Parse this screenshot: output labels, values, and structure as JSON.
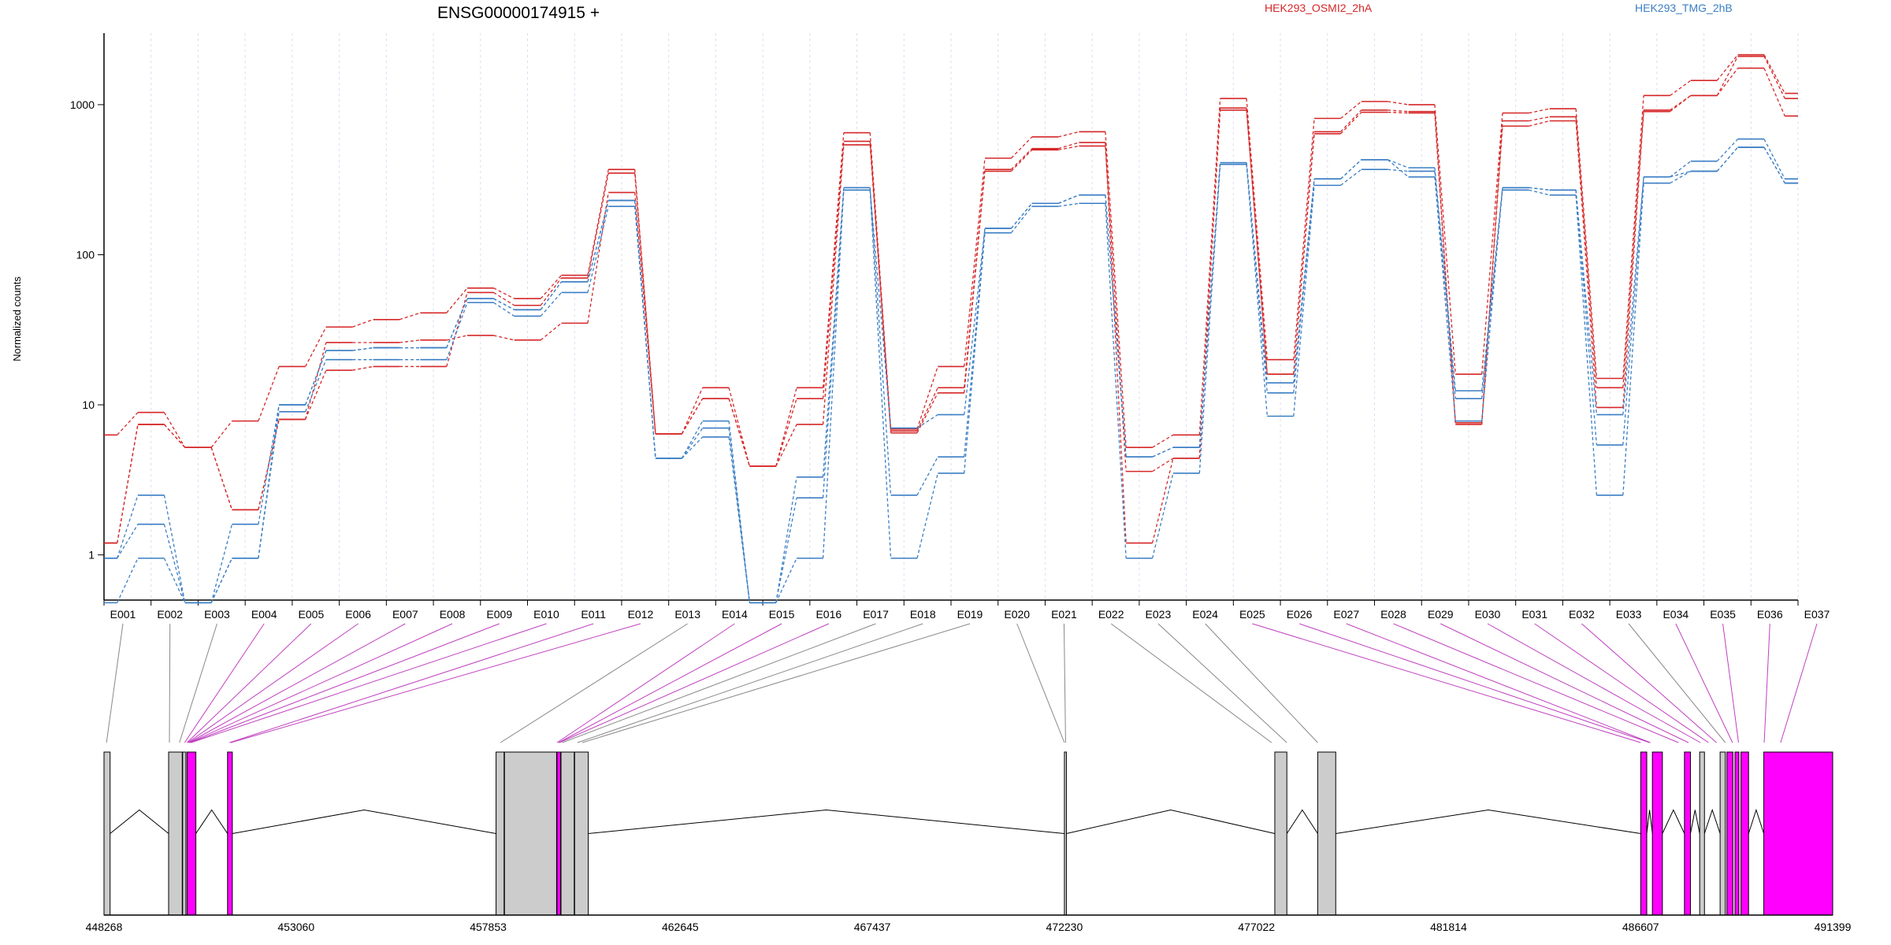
{
  "chart_data": {
    "type": "line",
    "title": "ENSG00000174915 +",
    "ylabel": "Normalized counts",
    "yscale": "log",
    "ylim": [
      0.5,
      3000
    ],
    "yticks": [
      1,
      10,
      100,
      1000
    ],
    "ytick_labels": [
      "1",
      "10",
      "100",
      "1000"
    ],
    "grid": "vertical dashed per exon",
    "legend_position": "top",
    "categories": [
      "E001",
      "E002",
      "E003",
      "E004",
      "E005",
      "E006",
      "E007",
      "E008",
      "E009",
      "E010",
      "E011",
      "E012",
      "E013",
      "E014",
      "E015",
      "E016",
      "E017",
      "E018",
      "E019",
      "E020",
      "E021",
      "E022",
      "E023",
      "E024",
      "E025",
      "E026",
      "E027",
      "E028",
      "E029",
      "E030",
      "E031",
      "E032",
      "E033",
      "E034",
      "E035",
      "E036",
      "E037"
    ],
    "series": [
      {
        "name": "HEK293_OSMI2_2hA",
        "color": "#d62728",
        "style": "dashed",
        "values": [
          6.3,
          8.9,
          5.2,
          7.8,
          18,
          33,
          37,
          41,
          60,
          51,
          73,
          370,
          6.4,
          13,
          3.9,
          13,
          650,
          6.9,
          18,
          440,
          610,
          660,
          5.2,
          6.3,
          1100,
          20,
          810,
          1050,
          1000,
          16,
          880,
          940,
          15,
          1150,
          1450,
          2150,
          1190
        ]
      },
      {
        "name": "HEK293_OSMI2_2hA",
        "color": "#d62728",
        "style": "dashed",
        "values": [
          1.2,
          7.4,
          5.2,
          2,
          8,
          26,
          26,
          27,
          29,
          27,
          35,
          260,
          6.4,
          11,
          3.9,
          11,
          570,
          6.7,
          13,
          370,
          510,
          560,
          1.2,
          4.4,
          950,
          16,
          660,
          920,
          900,
          7.4,
          780,
          830,
          13,
          920,
          1150,
          1750,
          840
        ]
      },
      {
        "name": "HEK293_OSMI2_2hA",
        "color": "#d62728",
        "style": "dashed",
        "values": [
          1.2,
          7.4,
          5.2,
          2,
          8,
          17,
          18,
          18,
          56,
          46,
          70,
          350,
          6.4,
          11,
          3.9,
          7.4,
          540,
          6.5,
          12,
          360,
          500,
          530,
          3.6,
          4.4,
          920,
          16,
          640,
          890,
          880,
          7.6,
          720,
          780,
          9.6,
          900,
          1150,
          2100,
          1100
        ]
      },
      {
        "name": "HEK293_TMG_2hB",
        "color": "#3a7ec4",
        "style": "dashed",
        "values": [
          0.95,
          2.5,
          0.48,
          1.6,
          10,
          23,
          24,
          24,
          51,
          43,
          66,
          230,
          4.4,
          7.8,
          0.48,
          3.3,
          280,
          2.5,
          4.5,
          150,
          220,
          250,
          4.5,
          5.2,
          410,
          14,
          320,
          430,
          380,
          12.4,
          280,
          270,
          8.6,
          330,
          420,
          590,
          320
        ]
      },
      {
        "name": "HEK293_TMG_2hB",
        "color": "#3a7ec4",
        "style": "dashed",
        "values": [
          0.95,
          1.6,
          0.48,
          0.95,
          9,
          20,
          20,
          20,
          48,
          39,
          56,
          210,
          4.4,
          6.1,
          0.48,
          2.4,
          270,
          0.95,
          3.5,
          140,
          210,
          220,
          0.95,
          3.5,
          400,
          8.4,
          290,
          370,
          360,
          11,
          270,
          250,
          2.5,
          300,
          360,
          520,
          300
        ]
      },
      {
        "name": "HEK293_TMG_2hB",
        "color": "#3a7ec4",
        "style": "dashed",
        "values": [
          0.48,
          0.95,
          0.48,
          0.95,
          10,
          23,
          24,
          24,
          51,
          43,
          66,
          230,
          4.4,
          7,
          0.48,
          0.95,
          270,
          7,
          8.6,
          150,
          220,
          250,
          4.5,
          5.2,
          410,
          12,
          320,
          430,
          330,
          7.8,
          280,
          270,
          5.4,
          330,
          360,
          520,
          300
        ]
      }
    ],
    "gene_model": {
      "coordinate_ticks": [
        "448268",
        "453060",
        "457853",
        "462645",
        "467437",
        "472230",
        "477022",
        "481814",
        "486607",
        "491399"
      ],
      "coordinate_tick_values": [
        448268,
        453060,
        457853,
        462645,
        467437,
        472230,
        477022,
        481814,
        486607,
        491399
      ],
      "exons_genomic": [
        {
          "start": 448268,
          "end": 448420,
          "highlight": false
        },
        {
          "start": 449880,
          "end": 450220,
          "highlight": false
        },
        {
          "start": 450230,
          "end": 450310,
          "highlight": false
        },
        {
          "start": 450340,
          "end": 450560,
          "highlight": true
        },
        {
          "start": 451350,
          "end": 451470,
          "highlight": true
        },
        {
          "start": 458050,
          "end": 458250,
          "highlight": false
        },
        {
          "start": 458260,
          "end": 459560,
          "highlight": false
        },
        {
          "start": 459570,
          "end": 459660,
          "highlight": true
        },
        {
          "start": 459670,
          "end": 460000,
          "highlight": false
        },
        {
          "start": 460010,
          "end": 460350,
          "highlight": false
        },
        {
          "start": 472230,
          "end": 472280,
          "highlight": false
        },
        {
          "start": 477480,
          "end": 477780,
          "highlight": false
        },
        {
          "start": 478550,
          "end": 479000,
          "highlight": false
        },
        {
          "start": 486610,
          "end": 486760,
          "highlight": true
        },
        {
          "start": 486900,
          "end": 487150,
          "highlight": true
        },
        {
          "start": 487700,
          "end": 487850,
          "highlight": true
        },
        {
          "start": 488080,
          "end": 488200,
          "highlight": false
        },
        {
          "start": 488590,
          "end": 488720,
          "highlight": false
        },
        {
          "start": 488760,
          "end": 488910,
          "highlight": true
        },
        {
          "start": 488960,
          "end": 489060,
          "highlight": true
        },
        {
          "start": 489110,
          "end": 489300,
          "highlight": true
        },
        {
          "start": 489680,
          "end": 491399,
          "highlight": true
        }
      ],
      "exon_bins_genomic": [
        448330,
        449900,
        450150,
        450280,
        450340,
        450360,
        450380,
        450400,
        450420,
        450440,
        451400,
        451430,
        458160,
        459570,
        459610,
        459630,
        459700,
        460080,
        460200,
        472230,
        472260,
        477400,
        477780,
        478550,
        486610,
        486830,
        486850,
        487550,
        487800,
        488100,
        488300,
        488500,
        488720,
        488900,
        489050,
        489690,
        490100
      ],
      "highlight_bins": [
        false,
        false,
        false,
        true,
        true,
        true,
        true,
        true,
        true,
        true,
        true,
        true,
        false,
        true,
        true,
        true,
        false,
        false,
        false,
        false,
        false,
        false,
        false,
        false,
        true,
        true,
        true,
        true,
        true,
        true,
        true,
        true,
        false,
        true,
        true,
        true,
        true
      ],
      "exon_color": "#cccccc",
      "highlight_color": "#ff00ff",
      "intron_color": "#000000"
    }
  }
}
